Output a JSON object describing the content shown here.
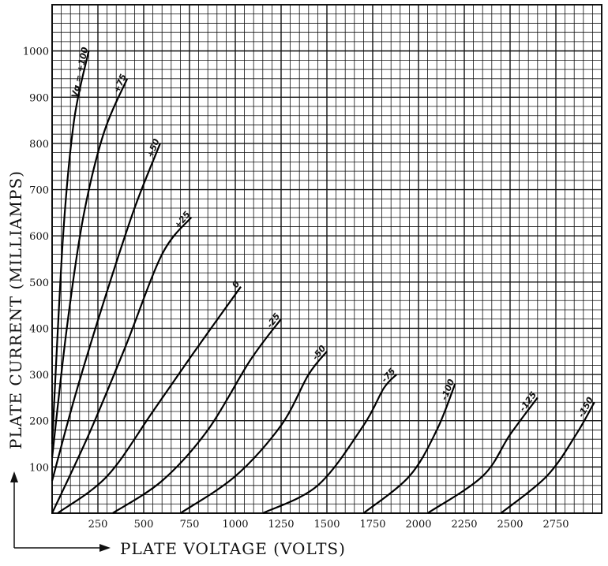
{
  "chart_data": {
    "type": "line",
    "title": "",
    "xlabel": "PLATE VOLTAGE (VOLTS)",
    "ylabel": "PLATE CURRENT (MILLIAMPS)",
    "xlim": [
      0,
      3000
    ],
    "ylim": [
      0,
      1100
    ],
    "x_ticks": [
      250,
      500,
      750,
      1000,
      1250,
      1500,
      1750,
      2000,
      2250,
      2500,
      2750
    ],
    "x_tick_labels": [
      "250",
      "500",
      "750",
      "1000",
      "1250",
      "1500",
      "1750",
      "2000",
      "2250",
      "2500",
      "2750"
    ],
    "y_ticks": [
      100,
      200,
      300,
      400,
      500,
      600,
      700,
      800,
      900,
      1000
    ],
    "y_tick_labels": [
      "100",
      "200",
      "300",
      "400",
      "500",
      "600",
      "700",
      "800",
      "900",
      "1000"
    ],
    "grid": true,
    "series": [
      {
        "name": "Vg = +100",
        "label_text": "Vg = +100",
        "points": [
          [
            0,
            150
          ],
          [
            60,
            600
          ],
          [
            120,
            850
          ],
          [
            200,
            1000
          ]
        ]
      },
      {
        "name": "+75",
        "label_text": "+75",
        "points": [
          [
            0,
            120
          ],
          [
            80,
            400
          ],
          [
            170,
            640
          ],
          [
            280,
            820
          ],
          [
            410,
            940
          ]
        ]
      },
      {
        "name": "+50",
        "label_text": "+50",
        "points": [
          [
            0,
            70
          ],
          [
            130,
            260
          ],
          [
            300,
            480
          ],
          [
            450,
            660
          ],
          [
            590,
            800
          ]
        ]
      },
      {
        "name": "+25",
        "label_text": "+25",
        "points": [
          [
            0,
            0
          ],
          [
            200,
            170
          ],
          [
            400,
            360
          ],
          [
            600,
            560
          ],
          [
            760,
            640
          ]
        ]
      },
      {
        "name": "0",
        "label_text": "0",
        "points": [
          [
            30,
            0
          ],
          [
            300,
            80
          ],
          [
            550,
            220
          ],
          [
            760,
            340
          ],
          [
            1030,
            490
          ]
        ]
      },
      {
        "name": "-25",
        "label_text": "-25",
        "points": [
          [
            330,
            0
          ],
          [
            600,
            70
          ],
          [
            850,
            180
          ],
          [
            1080,
            330
          ],
          [
            1250,
            420
          ]
        ]
      },
      {
        "name": "-50",
        "label_text": "-50",
        "points": [
          [
            700,
            0
          ],
          [
            1000,
            80
          ],
          [
            1250,
            190
          ],
          [
            1400,
            300
          ],
          [
            1500,
            350
          ]
        ]
      },
      {
        "name": "-75",
        "label_text": "-75",
        "points": [
          [
            1150,
            0
          ],
          [
            1450,
            60
          ],
          [
            1700,
            190
          ],
          [
            1810,
            270
          ],
          [
            1880,
            300
          ]
        ]
      },
      {
        "name": "-100",
        "label_text": "-100",
        "points": [
          [
            1700,
            0
          ],
          [
            1950,
            80
          ],
          [
            2100,
            180
          ],
          [
            2200,
            280
          ]
        ]
      },
      {
        "name": "-125",
        "label_text": "-125",
        "points": [
          [
            2050,
            0
          ],
          [
            2350,
            80
          ],
          [
            2500,
            170
          ],
          [
            2650,
            250
          ]
        ]
      },
      {
        "name": "-150",
        "label_text": "-150",
        "points": [
          [
            2450,
            0
          ],
          [
            2700,
            80
          ],
          [
            2860,
            170
          ],
          [
            2960,
            240
          ]
        ]
      }
    ]
  }
}
